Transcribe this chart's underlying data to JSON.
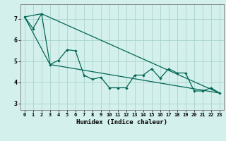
{
  "xlabel": "Humidex (Indice chaleur)",
  "bg_color": "#d4f0ec",
  "grid_color": "#aad4cc",
  "line_color": "#006655",
  "x_ticks": [
    0,
    1,
    2,
    3,
    4,
    5,
    6,
    7,
    8,
    9,
    10,
    11,
    12,
    13,
    14,
    15,
    16,
    17,
    18,
    19,
    20,
    21,
    22,
    23
  ],
  "y_ticks": [
    3,
    4,
    5,
    6,
    7
  ],
  "ylim": [
    2.7,
    7.7
  ],
  "xlim": [
    -0.5,
    23.5
  ],
  "series1_x": [
    0,
    1,
    2,
    3,
    4,
    5,
    6,
    7,
    8,
    9,
    10,
    11,
    12,
    13,
    14,
    15,
    16,
    17,
    18,
    19,
    20,
    21,
    22,
    23
  ],
  "series1_y": [
    7.1,
    6.55,
    7.25,
    4.85,
    5.05,
    5.55,
    5.5,
    4.35,
    4.15,
    4.25,
    3.75,
    3.75,
    3.75,
    4.35,
    4.35,
    4.65,
    4.2,
    4.65,
    4.45,
    4.45,
    3.6,
    3.6,
    3.75,
    3.5
  ],
  "series2_x": [
    0,
    2,
    23
  ],
  "series2_y": [
    7.1,
    7.25,
    3.5
  ],
  "series3_x": [
    0,
    3,
    23
  ],
  "series3_y": [
    7.1,
    4.85,
    3.5
  ]
}
